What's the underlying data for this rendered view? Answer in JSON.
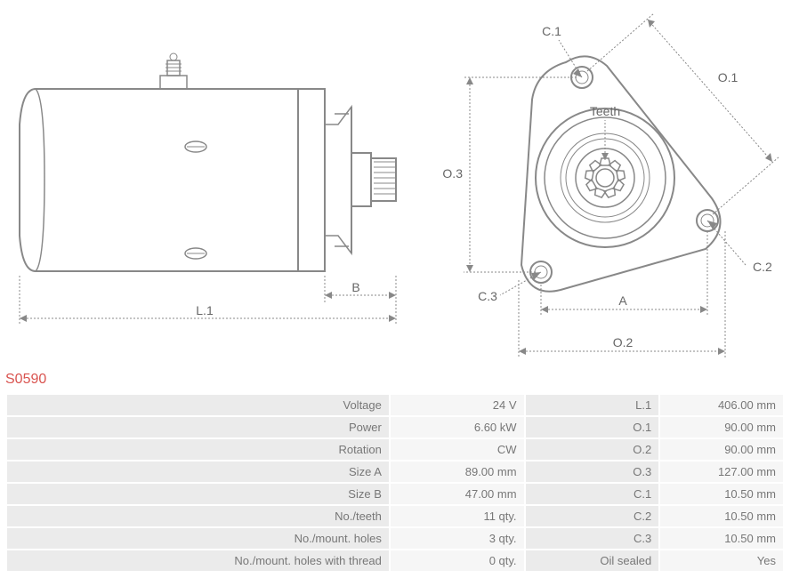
{
  "product_code": "S0590",
  "diagram": {
    "teeth_label": "Teeth",
    "labels": {
      "L1": "L.1",
      "B": "B",
      "O1": "O.1",
      "O2": "O.2",
      "O3": "O.3",
      "A": "A",
      "C1": "C.1",
      "C2": "C.2",
      "C3": "C.3"
    },
    "colors": {
      "stroke": "#888888",
      "text": "#666666",
      "background": "#ffffff"
    }
  },
  "specs": [
    {
      "l1": "Voltage",
      "v1": "24 V",
      "l2": "L.1",
      "v2": "406.00 mm"
    },
    {
      "l1": "Power",
      "v1": "6.60 kW",
      "l2": "O.1",
      "v2": "90.00 mm"
    },
    {
      "l1": "Rotation",
      "v1": "CW",
      "l2": "O.2",
      "v2": "90.00 mm"
    },
    {
      "l1": "Size A",
      "v1": "89.00 mm",
      "l2": "O.3",
      "v2": "127.00 mm"
    },
    {
      "l1": "Size B",
      "v1": "47.00 mm",
      "l2": "C.1",
      "v2": "10.50 mm"
    },
    {
      "l1": "No./teeth",
      "v1": "11 qty.",
      "l2": "C.2",
      "v2": "10.50 mm"
    },
    {
      "l1": "No./mount. holes",
      "v1": "3 qty.",
      "l2": "C.3",
      "v2": "10.50 mm"
    },
    {
      "l1": "No./mount. holes with thread",
      "v1": "0 qty.",
      "l2": "Oil sealed",
      "v2": "Yes"
    }
  ]
}
